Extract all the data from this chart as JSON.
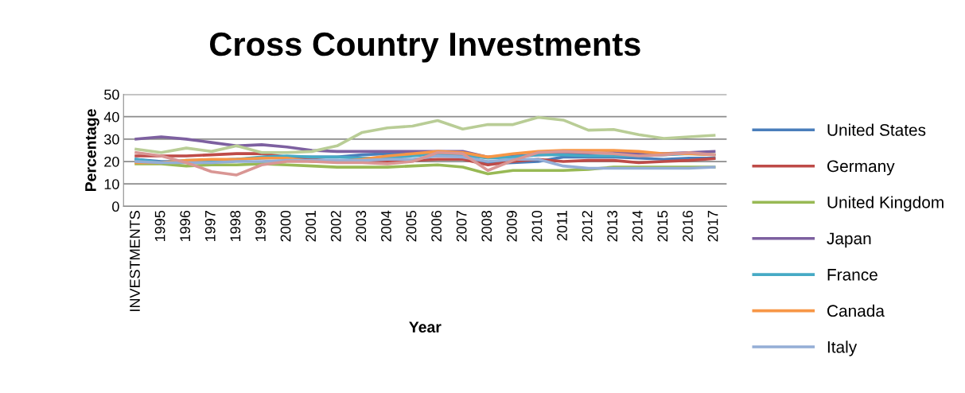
{
  "chart_data": {
    "type": "line",
    "title": "Cross Country Investments",
    "xlabel": "Year",
    "ylabel": "Percentage",
    "categories": [
      "INVESTMENTS",
      "1995",
      "1996",
      "1997",
      "1998",
      "1999",
      "2000",
      "2001",
      "2002",
      "2003",
      "2004",
      "2005",
      "2006",
      "2007",
      "2008",
      "2009",
      "2010",
      "2011",
      "2012",
      "2013",
      "2014",
      "2015",
      "2016",
      "2017"
    ],
    "ylim": [
      0,
      50
    ],
    "yticks": [
      0,
      10,
      20,
      30,
      40,
      50
    ],
    "grid": "y",
    "legend": "right",
    "marker": "none",
    "line_style": "solid",
    "series": [
      {
        "name": "United States",
        "color": "#4a7ebb",
        "values": [
          21,
          20,
          20,
          20.5,
          21,
          21.5,
          22,
          22,
          22,
          23,
          23.5,
          24,
          24,
          23.5,
          19,
          19.5,
          20,
          22,
          22,
          22,
          21.5,
          21,
          21.5,
          21.5
        ]
      },
      {
        "name": "Germany",
        "color": "#be4b48",
        "values": [
          22.5,
          22.5,
          22.5,
          23,
          23.5,
          23.5,
          22,
          21,
          20,
          20,
          20,
          20.5,
          21,
          21,
          18.5,
          20,
          21,
          20,
          20.5,
          20.5,
          19.5,
          20,
          20.5,
          21.3
        ]
      },
      {
        "name": "United Kingdom",
        "color": "#98b954",
        "values": [
          19,
          19,
          18,
          18.5,
          18.5,
          19,
          18.5,
          18,
          17.5,
          17.5,
          17.5,
          18,
          18.5,
          17.5,
          14.5,
          16,
          16,
          16,
          16.5,
          17.5,
          17.5,
          17.5,
          17.5,
          17.5
        ]
      },
      {
        "name": "Japan",
        "color": "#7d60a0",
        "values": [
          30,
          31,
          30,
          28.5,
          27,
          27.5,
          26.5,
          25,
          24.5,
          24.5,
          24.5,
          24.5,
          24.5,
          24.5,
          22,
          22.5,
          23,
          23.5,
          23.5,
          24,
          23.5,
          23.5,
          24,
          24.5
        ]
      },
      {
        "name": "France",
        "color": "#46aac5",
        "values": [
          21,
          19.5,
          20.5,
          20.5,
          21,
          22,
          22.5,
          22,
          22,
          21.5,
          21.5,
          22.5,
          23.5,
          23,
          21.5,
          22,
          23,
          23,
          22.5,
          22.5,
          22.5,
          23,
          23.5,
          23
        ]
      },
      {
        "name": "Canada",
        "color": "#f79646",
        "values": [
          19.5,
          19.5,
          20.5,
          21,
          21,
          21.5,
          21.5,
          20,
          20,
          21,
          22.5,
          23.5,
          24.5,
          24,
          22,
          23.5,
          24.5,
          25,
          25,
          25,
          24.5,
          23.5,
          23.5,
          23
        ]
      },
      {
        "name": "Italy",
        "color": "#94aed6",
        "values": [
          20,
          19.5,
          19.5,
          19.5,
          20,
          20,
          20.5,
          20.5,
          20.5,
          20.5,
          21,
          21,
          22.5,
          22,
          20,
          21,
          21,
          18,
          17,
          17,
          17,
          17,
          17,
          17.5
        ]
      },
      {
        "color": "#d99694",
        "values": [
          24,
          22.5,
          19.5,
          15.5,
          14,
          18.5,
          20,
          20,
          19.5,
          19.5,
          19,
          20,
          24,
          23.5,
          16,
          20.5,
          24,
          24.5,
          24,
          23.5,
          22.5,
          23,
          24,
          23
        ]
      },
      {
        "color": "#b9cd96",
        "values": [
          25.5,
          24,
          26,
          24.5,
          27,
          24,
          24,
          24.5,
          27,
          33,
          35,
          35.8,
          38.3,
          34.5,
          36.5,
          36.5,
          39.7,
          38.5,
          34,
          34.3,
          32,
          30.3,
          31,
          31.7
        ]
      }
    ]
  }
}
